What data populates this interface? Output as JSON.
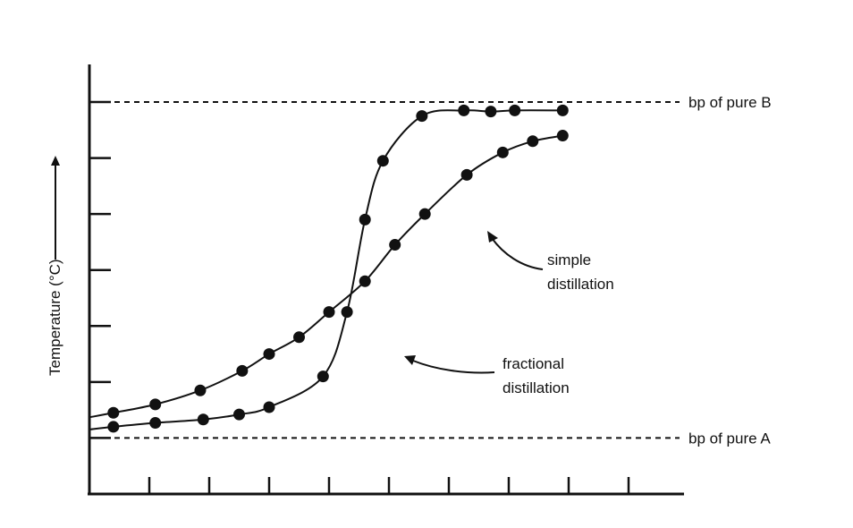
{
  "chart_data": {
    "type": "line",
    "ylabel": "Temperature (°C)",
    "xlabel": "",
    "grid": false,
    "legend": "none",
    "x_ticks": [
      1,
      2,
      3,
      4,
      5,
      6,
      7,
      8,
      9
    ],
    "y_ticks": [
      1,
      2,
      3,
      4,
      5,
      6,
      7
    ],
    "xlim": [
      0,
      10
    ],
    "ylim": [
      0,
      7.1
    ],
    "reference_lines": [
      {
        "label": "bp of pure A",
        "y": 1.0
      },
      {
        "label": "bp of pure B",
        "y": 7.0
      }
    ],
    "series": [
      {
        "label_text": [
          "simple",
          "distillation"
        ],
        "x": [
          0.4,
          1.1,
          1.85,
          2.55,
          3.0,
          3.5,
          4.0,
          4.6,
          5.1,
          5.6,
          6.3,
          6.9,
          7.4,
          7.9
        ],
        "y": [
          1.45,
          1.6,
          1.85,
          2.2,
          2.5,
          2.8,
          3.25,
          3.8,
          4.45,
          5.0,
          5.7,
          6.1,
          6.3,
          6.4
        ]
      },
      {
        "label_text": [
          "fractional",
          "distillation"
        ],
        "x": [
          0.4,
          1.1,
          1.9,
          2.5,
          3.0,
          3.9,
          4.3,
          4.6,
          4.9,
          5.55,
          6.25,
          6.7,
          7.1,
          7.9
        ],
        "y": [
          1.2,
          1.27,
          1.33,
          1.42,
          1.55,
          2.1,
          3.25,
          4.9,
          5.95,
          6.75,
          6.85,
          6.83,
          6.85,
          6.85
        ]
      }
    ],
    "annotations": [
      {
        "text": [
          "simple",
          "distillation"
        ],
        "points_to_series": 0
      },
      {
        "text": [
          "fractional",
          "distillation"
        ],
        "points_to_series": 1
      }
    ]
  }
}
